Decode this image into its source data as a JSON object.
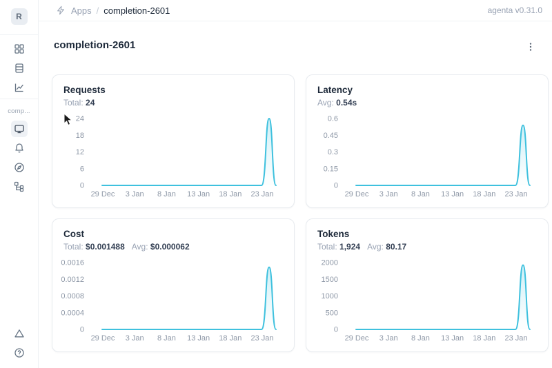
{
  "topbar": {
    "breadcrumb": {
      "root": "Apps",
      "separator": "/",
      "current": "completion-2601"
    },
    "version_label": "agenta v0.31.0"
  },
  "sidebar": {
    "avatar_letter": "R",
    "app_section_label": "comp...",
    "icons": {
      "workspace_nav": [
        "apps-grid",
        "registry-rows",
        "analytics-line-chart"
      ],
      "app_nav": [
        "overview-monitor",
        "bell",
        "compass",
        "traces-tree"
      ],
      "footer": [
        "warning-triangle",
        "help-circle"
      ]
    },
    "selected_icon": "overview-monitor"
  },
  "page": {
    "title": "completion-2601",
    "menu_icon": "ellipsis-vertical"
  },
  "colors": {
    "line": "#3FC1DE",
    "title_text": "#1d2939",
    "muted_text": "#98a2b3",
    "axis_text": "#8d97a6",
    "card_border": "#e7ebef"
  },
  "chart_data": [
    {
      "id": "requests",
      "type": "line",
      "title": "Requests",
      "stats": {
        "s1_label": "Total:",
        "s1_value": "24",
        "s2_label": "",
        "s2_value": ""
      },
      "x_tick_labels": [
        "29 Dec",
        "3 Jan",
        "8 Jan",
        "13 Jan",
        "18 Jan",
        "23 Jan"
      ],
      "y_tick_labels": [
        "0",
        "6",
        "12",
        "18",
        "24"
      ],
      "y_tick_values": [
        0,
        6,
        12,
        18,
        24
      ],
      "ylim": [
        0,
        24
      ],
      "series": [
        {
          "name": "Requests",
          "baseline_value": 0,
          "peak": {
            "value": 24,
            "approx_date": "26 Jan"
          },
          "note": "flat at 0 from 29 Dec, single narrow spike to 24 near 26 Jan, back to 0"
        }
      ],
      "peak_value": 24,
      "peak_fraction": 0.968,
      "grid": false,
      "legend": false
    },
    {
      "id": "latency",
      "type": "line",
      "title": "Latency",
      "stats": {
        "s1_label": "Avg:",
        "s1_value": "0.54s",
        "s2_label": "",
        "s2_value": ""
      },
      "x_tick_labels": [
        "29 Dec",
        "3 Jan",
        "8 Jan",
        "13 Jan",
        "18 Jan",
        "23 Jan"
      ],
      "y_tick_labels": [
        "0",
        "0.15",
        "0.3",
        "0.45",
        "0.6"
      ],
      "y_tick_values": [
        0,
        0.15,
        0.3,
        0.45,
        0.6
      ],
      "ylim": [
        0,
        0.6
      ],
      "series": [
        {
          "name": "Latency (s)",
          "baseline_value": 0,
          "peak": {
            "value": 0.54,
            "approx_date": "26 Jan"
          },
          "note": "flat at 0 from 29 Dec, single narrow spike to ~0.54s near 26 Jan, back to 0"
        }
      ],
      "peak_value": 0.54,
      "peak_fraction": 0.968,
      "grid": false,
      "legend": false
    },
    {
      "id": "cost",
      "type": "line",
      "title": "Cost",
      "stats": {
        "s1_label": "Total:",
        "s1_value": "$0.001488",
        "s2_label": "Avg:",
        "s2_value": "$0.000062"
      },
      "x_tick_labels": [
        "29 Dec",
        "3 Jan",
        "8 Jan",
        "13 Jan",
        "18 Jan",
        "23 Jan"
      ],
      "y_tick_labels": [
        "0",
        "0.0004",
        "0.0008",
        "0.0012",
        "0.0016"
      ],
      "y_tick_values": [
        0,
        0.0004,
        0.0008,
        0.0012,
        0.0016
      ],
      "ylim": [
        0,
        0.0016
      ],
      "series": [
        {
          "name": "Cost ($)",
          "baseline_value": 0,
          "peak": {
            "value": 0.001488,
            "approx_date": "26 Jan"
          },
          "note": "flat at 0 from 29 Dec, single narrow spike to ~$0.001488 near 26 Jan, back to 0"
        }
      ],
      "peak_value": 0.001488,
      "peak_fraction": 0.968,
      "grid": false,
      "legend": false
    },
    {
      "id": "tokens",
      "type": "line",
      "title": "Tokens",
      "stats": {
        "s1_label": "Total:",
        "s1_value": "1,924",
        "s2_label": "Avg:",
        "s2_value": "80.17"
      },
      "x_tick_labels": [
        "29 Dec",
        "3 Jan",
        "8 Jan",
        "13 Jan",
        "18 Jan",
        "23 Jan"
      ],
      "y_tick_labels": [
        "0",
        "500",
        "1000",
        "1500",
        "2000"
      ],
      "y_tick_values": [
        0,
        500,
        1000,
        1500,
        2000
      ],
      "ylim": [
        0,
        2000
      ],
      "series": [
        {
          "name": "Tokens",
          "baseline_value": 0,
          "peak": {
            "value": 1924,
            "approx_date": "26 Jan"
          },
          "note": "flat at 0 from 29 Dec, single narrow spike to ~1924 tokens near 26 Jan, back to 0"
        }
      ],
      "peak_value": 1924,
      "peak_fraction": 0.968,
      "grid": false,
      "legend": false
    }
  ]
}
